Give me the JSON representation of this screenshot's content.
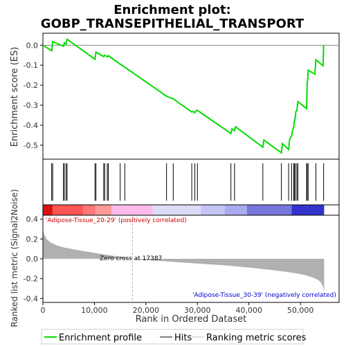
{
  "chart_data": {
    "type": "line",
    "title_line1": "Enrichment plot:",
    "title_line2": "GOBP_TRANSEPITHELIAL_TRANSPORT",
    "es_panel": {
      "ylabel": "Enrichment score (ES)",
      "ylim": [
        -0.57,
        0.06
      ],
      "yticks": [
        "0.0",
        "-0.1",
        "-0.2",
        "-0.3",
        "-0.4",
        "-0.5"
      ],
      "ytick_values": [
        0.0,
        -0.1,
        -0.2,
        -0.3,
        -0.4,
        -0.5
      ],
      "line_color": "#00dd00",
      "points": [
        [
          0,
          0.0
        ],
        [
          1700,
          -0.028
        ],
        [
          1900,
          0.018
        ],
        [
          4000,
          -0.005
        ],
        [
          4150,
          0.012
        ],
        [
          4500,
          0.005
        ],
        [
          4700,
          0.03
        ],
        [
          10100,
          -0.07
        ],
        [
          10300,
          -0.035
        ],
        [
          11800,
          -0.057
        ],
        [
          12000,
          -0.05
        ],
        [
          12500,
          -0.058
        ],
        [
          12700,
          -0.052
        ],
        [
          15000,
          -0.095
        ],
        [
          15200,
          -0.097
        ],
        [
          24000,
          -0.255
        ],
        [
          25300,
          -0.268
        ],
        [
          28900,
          -0.334
        ],
        [
          29100,
          -0.331
        ],
        [
          29500,
          -0.338
        ],
        [
          29700,
          -0.328
        ],
        [
          30000,
          -0.326
        ],
        [
          36500,
          -0.442
        ],
        [
          36700,
          -0.418
        ],
        [
          37200,
          -0.428
        ],
        [
          37400,
          -0.408
        ],
        [
          42700,
          -0.51
        ],
        [
          42900,
          -0.474
        ],
        [
          46300,
          -0.538
        ],
        [
          46500,
          -0.492
        ],
        [
          47700,
          -0.522
        ],
        [
          47900,
          -0.472
        ],
        [
          48300,
          -0.452
        ],
        [
          48500,
          -0.422
        ],
        [
          48700,
          -0.412
        ],
        [
          48800,
          -0.382
        ],
        [
          49000,
          -0.362
        ],
        [
          49100,
          -0.332
        ],
        [
          49300,
          -0.327
        ],
        [
          49500,
          -0.282
        ],
        [
          51200,
          -0.318
        ],
        [
          51300,
          -0.19
        ],
        [
          51400,
          -0.175
        ],
        [
          51500,
          -0.125
        ],
        [
          52800,
          -0.145
        ],
        [
          53000,
          -0.073
        ],
        [
          54400,
          -0.103
        ],
        [
          54500,
          0.0
        ]
      ]
    },
    "hits": [
      1700,
      1900,
      4000,
      4150,
      4500,
      4700,
      10100,
      10300,
      11800,
      12000,
      12500,
      12700,
      15000,
      15900,
      24000,
      25300,
      28900,
      29500,
      30000,
      36500,
      37200,
      42700,
      46300,
      47700,
      48300,
      48700,
      48800,
      49000,
      49300,
      49500,
      51200,
      51300,
      51500,
      53000,
      54500
    ],
    "bands": [
      {
        "x0": 0,
        "x1": 1900,
        "color": "#dd1111"
      },
      {
        "x0": 1900,
        "x1": 7800,
        "color": "#ff5555"
      },
      {
        "x0": 7800,
        "x1": 10200,
        "color": "#ff7777"
      },
      {
        "x0": 10200,
        "x1": 13300,
        "color": "#ff9999"
      },
      {
        "x0": 13300,
        "x1": 21300,
        "color": "#ffbbee"
      },
      {
        "x0": 21300,
        "x1": 30700,
        "color": "#dcdcf8"
      },
      {
        "x0": 30700,
        "x1": 35300,
        "color": "#c4c4f4"
      },
      {
        "x0": 35300,
        "x1": 39600,
        "color": "#aaaaee"
      },
      {
        "x0": 39600,
        "x1": 48300,
        "color": "#7777dd"
      },
      {
        "x0": 48300,
        "x1": 54600,
        "color": "#3333cc"
      }
    ],
    "pos_label": "'Adipose-Tissue_20-29' (positively correlated)",
    "neg_label": "'Adipose-Tissue_30-39' (negatively correlated)",
    "pos_label_color": "#cc0000",
    "neg_label_color": "#0000cc",
    "zero_cross_label": "Zero cross at 17387",
    "zero_cross": 17387,
    "metric_panel": {
      "ylabel": "Ranked list metric (Signal2Noise)",
      "ylim": [
        -0.44,
        0.44
      ],
      "yticks": [
        "0.4",
        "0.2",
        "0.0",
        "-0.2",
        "-0.4"
      ],
      "ytick_values": [
        0.4,
        0.2,
        0.0,
        -0.2,
        -0.4
      ],
      "fill_color": "#b0b0b0",
      "profile": [
        [
          0,
          0.29
        ],
        [
          300,
          0.24
        ],
        [
          800,
          0.195
        ],
        [
          1500,
          0.165
        ],
        [
          2500,
          0.14
        ],
        [
          4000,
          0.115
        ],
        [
          6000,
          0.095
        ],
        [
          8000,
          0.077
        ],
        [
          10000,
          0.06
        ],
        [
          12000,
          0.043
        ],
        [
          14000,
          0.028
        ],
        [
          16000,
          0.013
        ],
        [
          17387,
          0.0
        ],
        [
          20000,
          -0.012
        ],
        [
          25000,
          -0.03
        ],
        [
          30000,
          -0.048
        ],
        [
          35000,
          -0.065
        ],
        [
          40000,
          -0.088
        ],
        [
          44000,
          -0.11
        ],
        [
          47000,
          -0.13
        ],
        [
          49000,
          -0.145
        ],
        [
          51000,
          -0.165
        ],
        [
          52500,
          -0.19
        ],
        [
          53500,
          -0.215
        ],
        [
          54000,
          -0.24
        ],
        [
          54400,
          -0.285
        ],
        [
          54600,
          -0.33
        ]
      ]
    },
    "xaxis": {
      "label": "Rank in Ordered Dataset",
      "xlim": [
        0,
        57500
      ],
      "xticks": [
        "0",
        "10,000",
        "20,000",
        "30,000",
        "40,000",
        "50,000"
      ],
      "xtick_values": [
        0,
        10000,
        20000,
        30000,
        40000,
        50000
      ],
      "n_ranks": 54600
    },
    "legend": {
      "items": [
        {
          "label": "Enrichment profile",
          "color": "#00dd00",
          "style": "thick"
        },
        {
          "label": "Hits",
          "color": "#000000",
          "style": "thin"
        },
        {
          "label": "Ranking metric scores",
          "color": "#c0c0c0",
          "style": "thin"
        }
      ]
    }
  }
}
